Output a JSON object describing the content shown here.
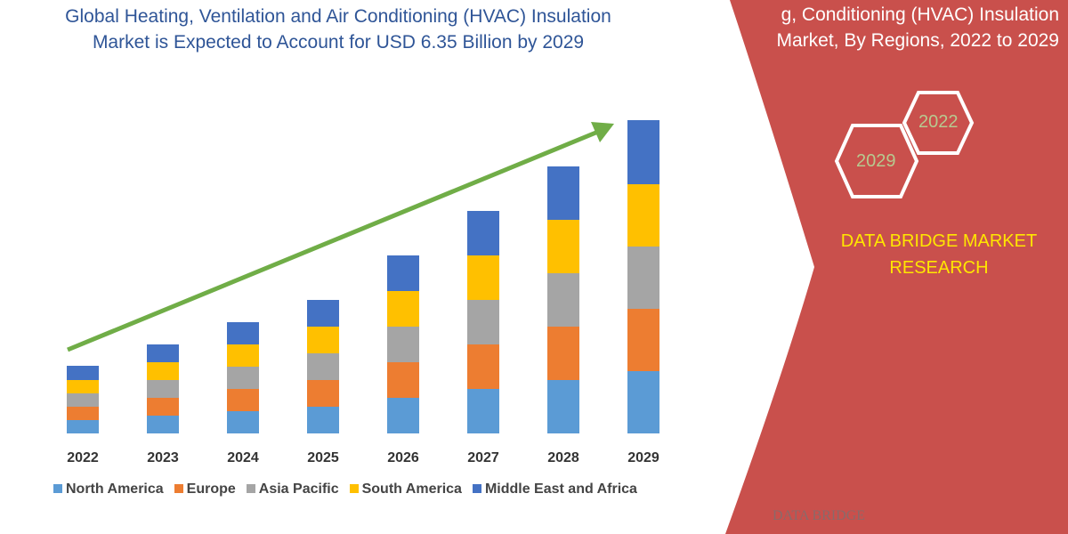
{
  "title": "Global Heating, Ventilation and Air Conditioning (HVAC) Insulation Market is Expected to Account for USD 6.35 Billion by 2029",
  "side_title": "g, Conditioning (HVAC) Insulation Market, By Regions, 2022 to 2029",
  "side_title_lines": [
    "Conditioning (HVAC) Insulation",
    "Market, By Regions, 2022 to 2029"
  ],
  "hex_labels": [
    "2022",
    "2029"
  ],
  "brand": "DATA BRIDGE MARKET RESEARCH",
  "logo_text": "DATA BRIDGE",
  "colors": {
    "panel": "#c9504c",
    "arrow": "#70ad47",
    "title": "#2f5597",
    "brand": "#ffe600"
  },
  "chart_data": {
    "type": "bar",
    "stacked": true,
    "grid": false,
    "legend": "bottom",
    "categories": [
      "2022",
      "2023",
      "2024",
      "2025",
      "2026",
      "2027",
      "2028",
      "2029"
    ],
    "series": [
      {
        "name": "North America",
        "color": "#5b9bd5",
        "values": [
          15,
          20,
          25,
          30,
          40,
          50,
          60,
          70
        ]
      },
      {
        "name": "Europe",
        "color": "#ed7d31",
        "values": [
          15,
          20,
          25,
          30,
          40,
          50,
          60,
          70
        ]
      },
      {
        "name": "Asia Pacific",
        "color": "#a5a5a5",
        "values": [
          15,
          20,
          25,
          30,
          40,
          50,
          60,
          70
        ]
      },
      {
        "name": "South America",
        "color": "#ffc000",
        "values": [
          15,
          20,
          25,
          30,
          40,
          50,
          60,
          70
        ]
      },
      {
        "name": "Middle East and Africa",
        "color": "#4472c4",
        "values": [
          16,
          20,
          25,
          30,
          40,
          50,
          60,
          72
        ]
      }
    ],
    "annotation": "trend arrow (increasing)"
  }
}
